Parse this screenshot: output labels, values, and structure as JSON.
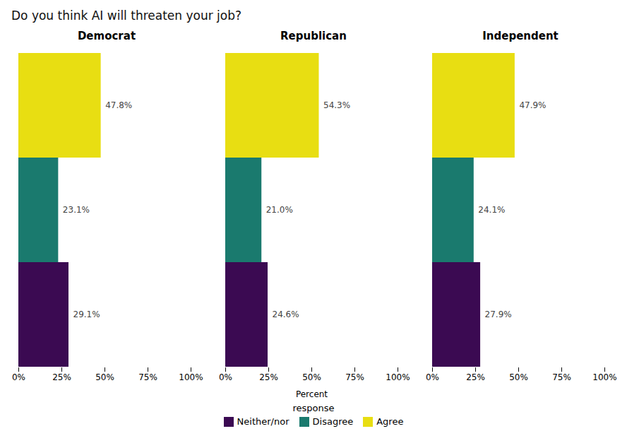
{
  "chart_data": {
    "type": "bar",
    "orientation": "horizontal",
    "stacked": false,
    "title": "Do you think AI will threaten your job?",
    "categories": [
      "Democrat",
      "Republican",
      "Independent"
    ],
    "series": [
      {
        "name": "Neither/nor",
        "color": "#3b0a52",
        "values": [
          29.1,
          24.6,
          27.9
        ],
        "value_labels": [
          "29.1%",
          "24.6%",
          "27.9%"
        ]
      },
      {
        "name": "Disagree",
        "color": "#1a7a6e",
        "values": [
          23.1,
          21.0,
          24.1
        ],
        "value_labels": [
          "23.1%",
          "21.0%",
          "24.1%"
        ]
      },
      {
        "name": "Agree",
        "color": "#e8de12",
        "values": [
          47.8,
          54.3,
          47.9
        ],
        "value_labels": [
          "47.8%",
          "54.3%",
          "47.9%"
        ]
      }
    ],
    "xlabel": "Percent",
    "xlim": [
      0,
      100
    ],
    "xticks": [
      {
        "value": 0,
        "label": "0%"
      },
      {
        "value": 25,
        "label": "25%"
      },
      {
        "value": 50,
        "label": "50%"
      },
      {
        "value": 75,
        "label": "75%"
      },
      {
        "value": 100,
        "label": "100%"
      }
    ],
    "legend": "bottom",
    "legend_title": "response",
    "data_labels": true,
    "tick_labels": "x",
    "grid": false
  }
}
